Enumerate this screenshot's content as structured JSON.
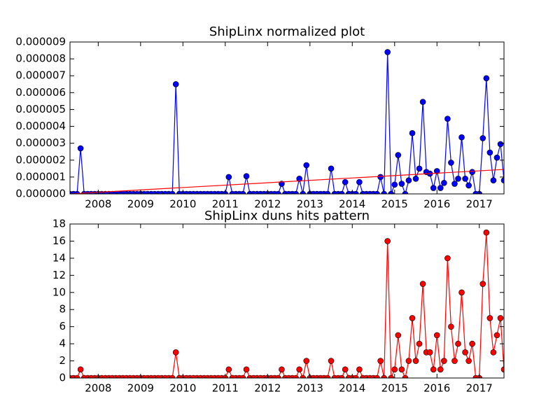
{
  "chart_data": [
    {
      "type": "line",
      "title": "ShipLinx normalized plot",
      "xlim": [
        2007.333,
        2017.583
      ],
      "xticks": [
        2008,
        2009,
        2010,
        2011,
        2012,
        2013,
        2014,
        2015,
        2016,
        2017
      ],
      "ylim": [
        0,
        9e-06
      ],
      "yticks": [
        {
          "value": 0,
          "label": "0.000000"
        },
        {
          "value": 1e-06,
          "label": "0.000001"
        },
        {
          "value": 2e-06,
          "label": "0.000002"
        },
        {
          "value": 3e-06,
          "label": "0.000003"
        },
        {
          "value": 4e-06,
          "label": "0.000004"
        },
        {
          "value": 5e-06,
          "label": "0.000005"
        },
        {
          "value": 6e-06,
          "label": "0.000006"
        },
        {
          "value": 7e-06,
          "label": "0.000007"
        },
        {
          "value": 8e-06,
          "label": "0.000008"
        },
        {
          "value": 9e-06,
          "label": "0.000009"
        }
      ],
      "x": [
        2007.333,
        2007.417,
        2007.5,
        2007.583,
        2007.667,
        2007.75,
        2007.833,
        2007.917,
        2008,
        2008.083,
        2008.167,
        2008.25,
        2008.333,
        2008.417,
        2008.5,
        2008.583,
        2008.667,
        2008.75,
        2008.833,
        2008.917,
        2009,
        2009.083,
        2009.167,
        2009.25,
        2009.333,
        2009.417,
        2009.5,
        2009.583,
        2009.667,
        2009.75,
        2009.833,
        2009.917,
        2010,
        2010.083,
        2010.167,
        2010.25,
        2010.333,
        2010.417,
        2010.5,
        2010.583,
        2010.667,
        2010.75,
        2010.833,
        2010.917,
        2011,
        2011.083,
        2011.167,
        2011.25,
        2011.333,
        2011.417,
        2011.5,
        2011.583,
        2011.667,
        2011.75,
        2011.833,
        2011.917,
        2012,
        2012.083,
        2012.167,
        2012.25,
        2012.333,
        2012.417,
        2012.5,
        2012.583,
        2012.667,
        2012.75,
        2012.833,
        2012.917,
        2013,
        2013.083,
        2013.167,
        2013.25,
        2013.333,
        2013.417,
        2013.5,
        2013.583,
        2013.667,
        2013.75,
        2013.833,
        2013.917,
        2014,
        2014.083,
        2014.167,
        2014.25,
        2014.333,
        2014.417,
        2014.5,
        2014.583,
        2014.667,
        2014.75,
        2014.833,
        2014.917,
        2015,
        2015.083,
        2015.167,
        2015.25,
        2015.333,
        2015.417,
        2015.5,
        2015.583,
        2015.667,
        2015.75,
        2015.833,
        2015.917,
        2016,
        2016.083,
        2016.167,
        2016.25,
        2016.333,
        2016.417,
        2016.5,
        2016.583,
        2016.667,
        2016.75,
        2016.833,
        2016.917,
        2017,
        2017.083,
        2017.167,
        2017.25,
        2017.333,
        2017.417,
        2017.5,
        2017.583
      ],
      "series": [
        {
          "color": "#0000ff",
          "marker": true,
          "values": [
            0,
            0,
            0,
            2.7e-06,
            0,
            0,
            0,
            0,
            0,
            0,
            0,
            0,
            0,
            0,
            0,
            0,
            0,
            0,
            0,
            0,
            0,
            0,
            0,
            0,
            0,
            0,
            0,
            0,
            0,
            0,
            6.5e-06,
            0,
            0,
            0,
            0,
            0,
            0,
            0,
            0,
            0,
            0,
            0,
            0,
            0,
            0,
            1e-06,
            0,
            0,
            0,
            0,
            1.05e-06,
            0,
            0,
            0,
            0,
            0,
            0,
            0,
            0,
            0,
            6e-07,
            0,
            0,
            0,
            0,
            9e-07,
            0,
            1.7e-06,
            0,
            0,
            0,
            0,
            0,
            0,
            1.5e-06,
            0,
            0,
            0,
            7e-07,
            0,
            0,
            0,
            7e-07,
            0,
            0,
            0,
            0,
            0,
            1e-06,
            0,
            8.4e-06,
            0,
            5.5e-07,
            2.3e-06,
            6e-07,
            0,
            8e-07,
            3.6e-06,
            9e-07,
            1.5e-06,
            5.45e-06,
            1.3e-06,
            1.2e-06,
            3.5e-07,
            1.35e-06,
            3.5e-07,
            6.5e-07,
            4.45e-06,
            1.85e-06,
            6e-07,
            9e-07,
            3.35e-06,
            9e-07,
            5e-07,
            1.3e-06,
            0,
            0,
            3.3e-06,
            6.85e-06,
            2.45e-06,
            8e-07,
            2.15e-06,
            2.95e-06,
            8e-07
          ]
        },
        {
          "color": "#ff0000",
          "marker": false,
          "x": [
            2007.333,
            2017.583
          ],
          "values": [
            0,
            1.45e-06
          ]
        }
      ]
    },
    {
      "type": "line",
      "title": "ShipLinx duns hits pattern",
      "xlim": [
        2007.333,
        2017.583
      ],
      "xticks": [
        2008,
        2009,
        2010,
        2011,
        2012,
        2013,
        2014,
        2015,
        2016,
        2017
      ],
      "ylim": [
        0,
        18
      ],
      "yticks": [
        0,
        2,
        4,
        6,
        8,
        10,
        12,
        14,
        16,
        18
      ],
      "x": [
        2007.333,
        2007.417,
        2007.5,
        2007.583,
        2007.667,
        2007.75,
        2007.833,
        2007.917,
        2008,
        2008.083,
        2008.167,
        2008.25,
        2008.333,
        2008.417,
        2008.5,
        2008.583,
        2008.667,
        2008.75,
        2008.833,
        2008.917,
        2009,
        2009.083,
        2009.167,
        2009.25,
        2009.333,
        2009.417,
        2009.5,
        2009.583,
        2009.667,
        2009.75,
        2009.833,
        2009.917,
        2010,
        2010.083,
        2010.167,
        2010.25,
        2010.333,
        2010.417,
        2010.5,
        2010.583,
        2010.667,
        2010.75,
        2010.833,
        2010.917,
        2011,
        2011.083,
        2011.167,
        2011.25,
        2011.333,
        2011.417,
        2011.5,
        2011.583,
        2011.667,
        2011.75,
        2011.833,
        2011.917,
        2012,
        2012.083,
        2012.167,
        2012.25,
        2012.333,
        2012.417,
        2012.5,
        2012.583,
        2012.667,
        2012.75,
        2012.833,
        2012.917,
        2013,
        2013.083,
        2013.167,
        2013.25,
        2013.333,
        2013.417,
        2013.5,
        2013.583,
        2013.667,
        2013.75,
        2013.833,
        2013.917,
        2014,
        2014.083,
        2014.167,
        2014.25,
        2014.333,
        2014.417,
        2014.5,
        2014.583,
        2014.667,
        2014.75,
        2014.833,
        2014.917,
        2015,
        2015.083,
        2015.167,
        2015.25,
        2015.333,
        2015.417,
        2015.5,
        2015.583,
        2015.667,
        2015.75,
        2015.833,
        2015.917,
        2016,
        2016.083,
        2016.167,
        2016.25,
        2016.333,
        2016.417,
        2016.5,
        2016.583,
        2016.667,
        2016.75,
        2016.833,
        2016.917,
        2017,
        2017.083,
        2017.167,
        2017.25,
        2017.333,
        2017.417,
        2017.5,
        2017.583
      ],
      "series": [
        {
          "color": "#ff0000",
          "marker": true,
          "values": [
            0,
            0,
            0,
            1,
            0,
            0,
            0,
            0,
            0,
            0,
            0,
            0,
            0,
            0,
            0,
            0,
            0,
            0,
            0,
            0,
            0,
            0,
            0,
            0,
            0,
            0,
            0,
            0,
            0,
            0,
            3,
            0,
            0,
            0,
            0,
            0,
            0,
            0,
            0,
            0,
            0,
            0,
            0,
            0,
            0,
            1,
            0,
            0,
            0,
            0,
            1,
            0,
            0,
            0,
            0,
            0,
            0,
            0,
            0,
            0,
            1,
            0,
            0,
            0,
            0,
            1,
            0,
            2,
            0,
            0,
            0,
            0,
            0,
            0,
            2,
            0,
            0,
            0,
            1,
            0,
            0,
            0,
            1,
            0,
            0,
            0,
            0,
            0,
            2,
            0,
            16,
            0,
            1,
            5,
            1,
            0,
            2,
            7,
            2,
            4,
            11,
            3,
            3,
            1,
            5,
            1,
            2,
            14,
            6,
            2,
            4,
            10,
            3,
            2,
            4,
            0,
            0,
            11,
            17,
            7,
            3,
            5,
            7,
            1
          ]
        }
      ]
    }
  ]
}
